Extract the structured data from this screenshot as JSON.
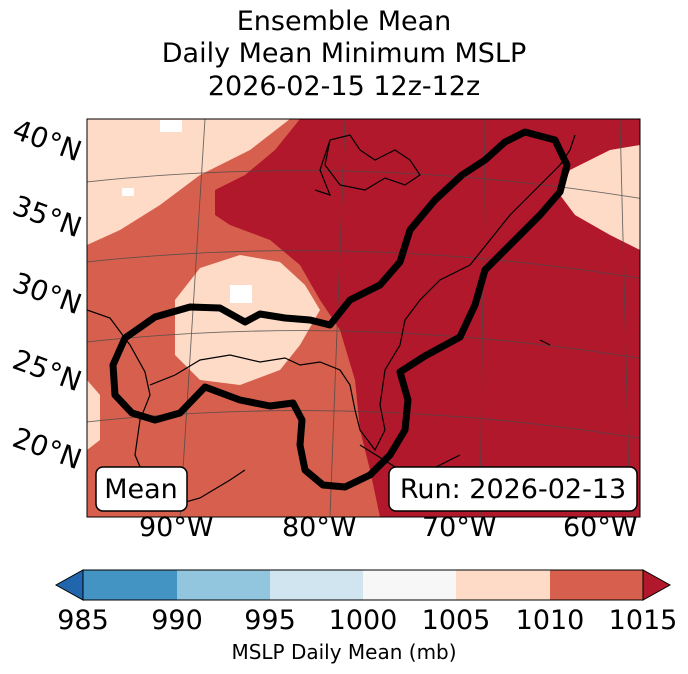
{
  "title": {
    "line1": "Ensemble Mean",
    "line2": "Daily Mean Minimum MSLP",
    "line3": "2026-02-15 12z-12z"
  },
  "map": {
    "lat_labels": [
      "40°N",
      "35°N",
      "30°N",
      "25°N",
      "20°N"
    ],
    "lon_labels": [
      "90°W",
      "80°W",
      "70°W",
      "60°W"
    ],
    "mean_box": "Mean",
    "run_box": "Run: 2026-02-13",
    "contour_color": "#000000",
    "field_colors": {
      "lt_1005": "#ffffff",
      "1005_1010": "#fddbc7",
      "1010_1015": "#d6604d",
      "gt_1015": "#b2182b"
    }
  },
  "colorbar": {
    "label": "MSLP Daily Mean (mb)",
    "ticks": [
      "985",
      "990",
      "995",
      "1000",
      "1005",
      "1010",
      "1015"
    ],
    "colors": [
      "#2166ac",
      "#4393c3",
      "#92c5de",
      "#d1e5f0",
      "#f7f7f7",
      "#fddbc7",
      "#d6604d",
      "#b2182b"
    ]
  }
}
